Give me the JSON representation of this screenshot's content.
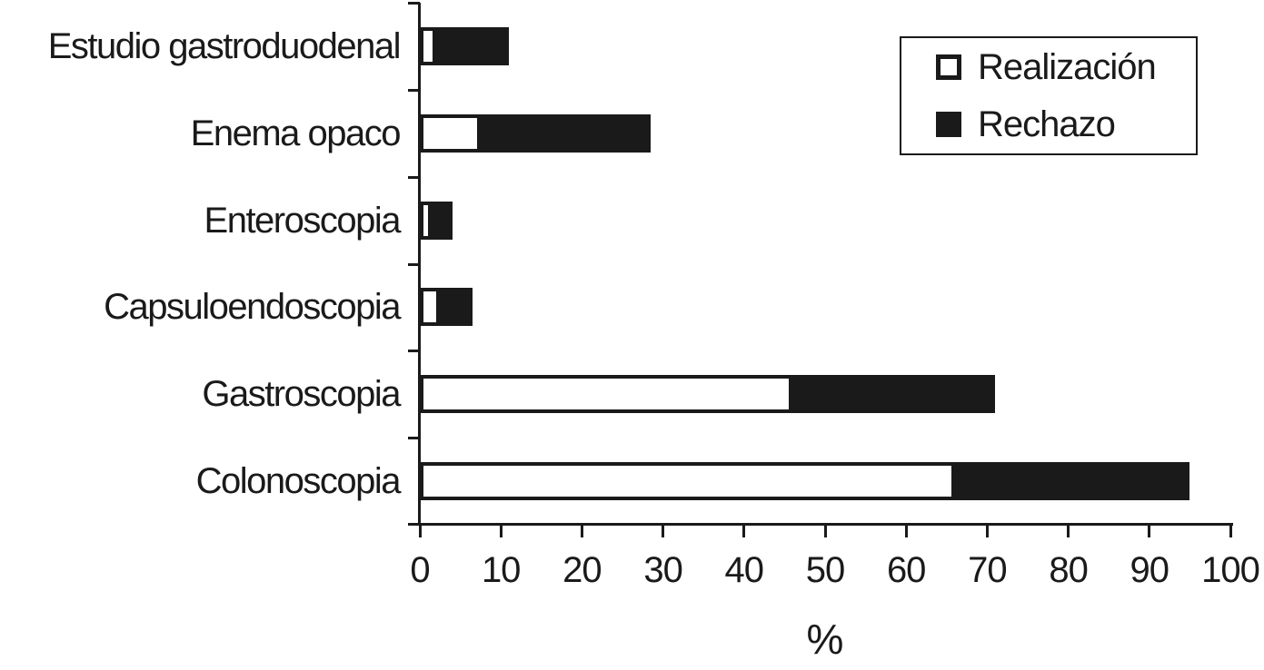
{
  "chart_data": {
    "type": "bar",
    "orientation": "horizontal",
    "stacked": true,
    "title": "",
    "xlabel": "%",
    "ylabel": "",
    "xlim": [
      0,
      100
    ],
    "x_ticks": [
      0,
      10,
      20,
      30,
      40,
      50,
      60,
      70,
      80,
      90,
      100
    ],
    "grid": false,
    "legend_position": "top-right",
    "categories": [
      "Estudio gastroduodenal",
      "Enema opaco",
      "Enteroscopia",
      "Capsuloendoscopia",
      "Gastroscopia",
      "Colonoscopia"
    ],
    "series": [
      {
        "name": "Realización",
        "fill": "#ffffff",
        "values": [
          2,
          7.5,
          1.5,
          2.5,
          46,
          66
        ]
      },
      {
        "name": "Rechazo",
        "fill": "#1a1a1a",
        "values": [
          9,
          21,
          2.5,
          4,
          25,
          29
        ]
      }
    ]
  },
  "colors": {
    "ink": "#1a1a1a",
    "background": "#ffffff",
    "realizacion_fill": "#ffffff",
    "rechazo_fill": "#1a1a1a"
  }
}
